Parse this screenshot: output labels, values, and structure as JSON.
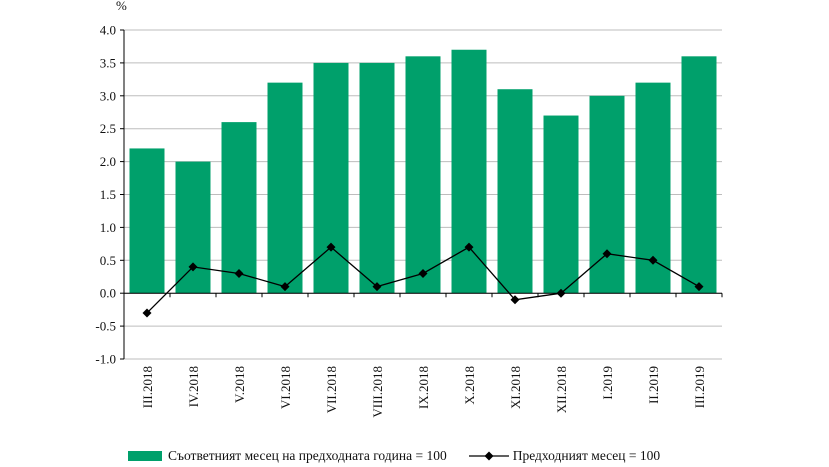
{
  "chart_data": {
    "type": "bar+line",
    "unit_label": "%",
    "categories": [
      "III.2018",
      "IV.2018",
      "V.2018",
      "VI.2018",
      "VII.2018",
      "VIII.2018",
      "IX.2018",
      "X.2018",
      "XI.2018",
      "XII.2018",
      "I.2019",
      "II.2019",
      "III.2019"
    ],
    "series": [
      {
        "name": "Съответният месец на предходната година = 100",
        "type": "bar",
        "color": "#00a06b",
        "values": [
          2.2,
          2.0,
          2.6,
          3.2,
          3.5,
          3.5,
          3.6,
          3.7,
          3.1,
          2.7,
          3.0,
          3.2,
          3.6
        ]
      },
      {
        "name": "Предходният месец = 100",
        "type": "line",
        "color": "#000000",
        "marker": "diamond",
        "values": [
          -0.3,
          0.4,
          0.3,
          0.1,
          0.7,
          0.1,
          0.3,
          0.7,
          -0.1,
          0.0,
          0.6,
          0.5,
          0.1
        ]
      }
    ],
    "ylim": [
      -1.0,
      4.0
    ],
    "yticks": [
      "4.0",
      "3.5",
      "3.0",
      "2.5",
      "2.0",
      "1.5",
      "1.0",
      "0.5",
      "0.0",
      "-0.5",
      "-1.0"
    ],
    "grid": true,
    "legend_position": "bottom"
  }
}
